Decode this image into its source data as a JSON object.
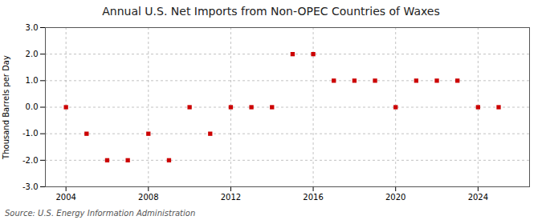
{
  "chart_data": {
    "type": "scatter",
    "title": "Annual U.S. Net Imports from Non-OPEC Countries of Waxes",
    "ylabel": "Thousand Barrels per Day",
    "source": "Source: U.S. Energy Information Administration",
    "x": [
      2004,
      2005,
      2006,
      2007,
      2008,
      2009,
      2010,
      2011,
      2012,
      2013,
      2014,
      2015,
      2016,
      2017,
      2018,
      2019,
      2020,
      2021,
      2022,
      2023,
      2024,
      2025
    ],
    "values": [
      0,
      -1,
      -2,
      -2,
      -1,
      -2,
      0,
      -1,
      0,
      0,
      0,
      2,
      2,
      1,
      1,
      1,
      0,
      1,
      1,
      1,
      0,
      0
    ],
    "color": "#cc0000",
    "marker": "square",
    "xlim": [
      2003.0,
      2026.5
    ],
    "xticks": [
      2004,
      2008,
      2012,
      2016,
      2020,
      2024
    ],
    "ylim": [
      -3.0,
      3.0
    ],
    "yticks": [
      {
        "value": -3,
        "label": "-3.0"
      },
      {
        "value": -2,
        "label": "-2.0"
      },
      {
        "value": -1,
        "label": "-1.0"
      },
      {
        "value": 0,
        "label": "0.0"
      },
      {
        "value": 1,
        "label": "1.0"
      },
      {
        "value": 2,
        "label": "2.0"
      },
      {
        "value": 3,
        "label": "3.0"
      }
    ],
    "grid": true
  }
}
